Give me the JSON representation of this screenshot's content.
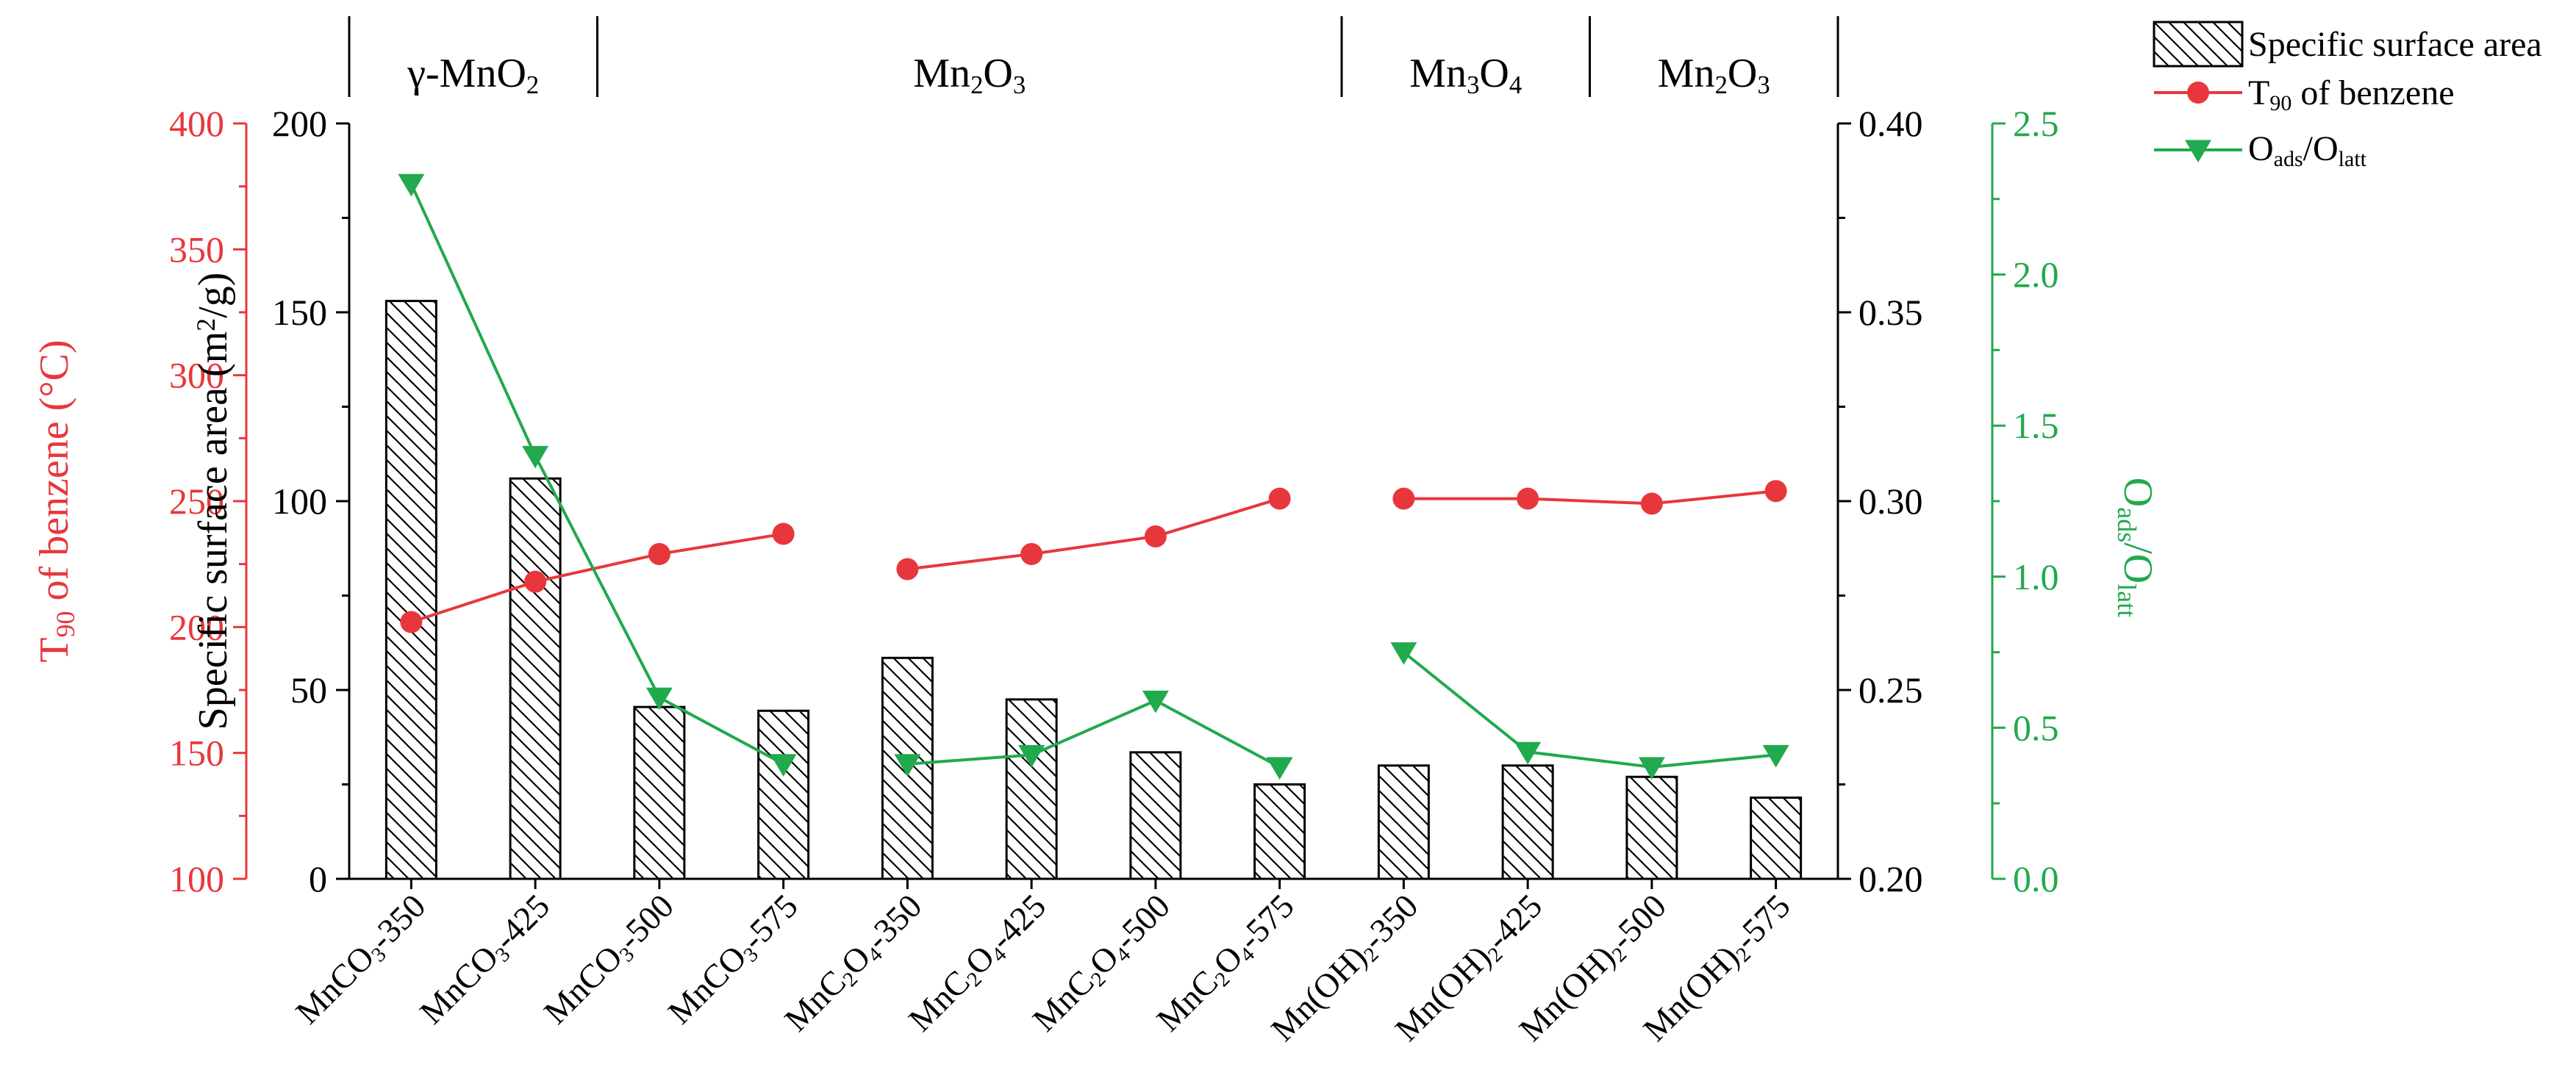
{
  "chart_data": {
    "type": "bar+line",
    "categories": [
      [
        "MnCO",
        "3",
        "-350"
      ],
      [
        "MnCO",
        "3",
        "-425"
      ],
      [
        "MnCO",
        "3",
        "-500"
      ],
      [
        "MnCO",
        "3",
        "-575"
      ],
      [
        "MnC",
        "2",
        "O",
        "4",
        "-350"
      ],
      [
        "MnC",
        "2",
        "O",
        "4",
        "-425"
      ],
      [
        "MnC",
        "2",
        "O",
        "4",
        "-500"
      ],
      [
        "MnC",
        "2",
        "O",
        "4",
        "-575"
      ],
      [
        "Mn(OH)",
        "2",
        "-350"
      ],
      [
        "Mn(OH)",
        "2",
        "-425"
      ],
      [
        "Mn(OH)",
        "2",
        "-500"
      ],
      [
        "Mn(OH)",
        "2",
        "-575"
      ]
    ],
    "phase_groups": [
      {
        "label": [
          "γ-MnO",
          "2"
        ],
        "start": 0,
        "end": 1
      },
      {
        "label": [
          "Mn",
          "2",
          "O",
          "3"
        ],
        "start": 2,
        "end": 7
      },
      {
        "label": [
          "Mn",
          "3",
          "O",
          "4"
        ],
        "start": 8,
        "end": 9
      },
      {
        "label": [
          "Mn",
          "2",
          "O",
          "3"
        ],
        "start": 10,
        "end": 11
      }
    ],
    "series": [
      {
        "name": "Specific surface area",
        "kind": "bar",
        "axis": "surface",
        "values": [
          153,
          106,
          45.5,
          44.5,
          58.5,
          47.5,
          33.5,
          25,
          30,
          30,
          27,
          21.5
        ]
      },
      {
        "name": "T90 of benzene",
        "kind": "line",
        "axis": "t90",
        "color": "#e8373c",
        "segments": [
          [
            0,
            3
          ],
          [
            4,
            7
          ],
          [
            8,
            11
          ]
        ],
        "values": [
          202,
          218,
          229,
          237,
          223,
          229,
          236,
          251,
          251,
          251,
          249,
          254
        ]
      },
      {
        "name": "Oads/Olatt",
        "kind": "line",
        "axis": "oads",
        "color": "#21a94e",
        "segments": [
          [
            0,
            3
          ],
          [
            4,
            7
          ],
          [
            8,
            11
          ]
        ],
        "values": [
          2.3,
          1.4,
          0.6,
          0.38,
          0.38,
          0.41,
          0.59,
          0.37,
          0.75,
          0.42,
          0.37,
          0.41
        ]
      }
    ],
    "axes": {
      "t90": {
        "label_main": "T",
        "label_sub": "90",
        "label_rest": " of benzene (°C)",
        "min": 100,
        "max": 400,
        "ticks": [
          100,
          150,
          200,
          250,
          300,
          350,
          400
        ],
        "color": "#e8373c"
      },
      "surface": {
        "label_main": "Specific surface area (m",
        "label_sup": "2",
        "label_rest": "/g)",
        "min": 0,
        "max": 200,
        "ticks": [
          0,
          50,
          100,
          150,
          200
        ],
        "color": "#000000"
      },
      "right": {
        "min": 0.2,
        "max": 0.4,
        "ticks": [
          "0.20",
          "0.25",
          "0.30",
          "0.35",
          "0.40"
        ],
        "color": "#000000"
      },
      "oads": {
        "label_a": "O",
        "label_a_sub": "ads",
        "label_b": "/O",
        "label_b_sub": "latt",
        "min": 0,
        "max": 2.5,
        "ticks": [
          "0.0",
          "0.5",
          "1.0",
          "1.5",
          "2.0",
          "2.5"
        ],
        "color": "#21a94e"
      }
    },
    "legend": {
      "position": "top-right",
      "items": [
        {
          "kind": "bar",
          "text": "Specific surface area"
        },
        {
          "kind": "line-circle",
          "main": "T",
          "sub": "90",
          "rest": " of benzene"
        },
        {
          "kind": "line-triangle",
          "main": "O",
          "sub": "ads",
          "mid": "/O",
          "sub2": "latt"
        }
      ]
    }
  }
}
